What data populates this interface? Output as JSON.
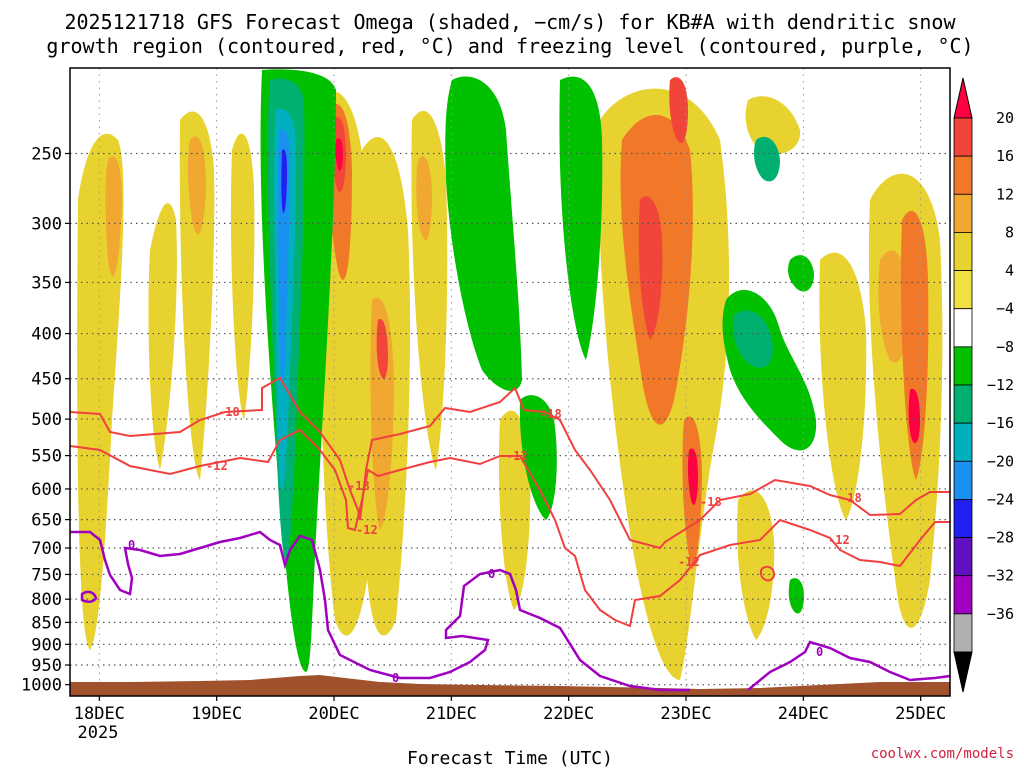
{
  "chart_data": {
    "type": "heatmap",
    "title_line1": "2025121718 GFS Forecast Omega (shaded, −cm/s) for KB#A with dendritic snow",
    "title_line2": "growth region (contoured, red, °C) and freezing level (contoured, purple, °C)",
    "xlabel": "Forecast Time (UTC)",
    "x_ticks": [
      "18DEC",
      "19DEC",
      "20DEC",
      "21DEC",
      "22DEC",
      "23DEC",
      "24DEC",
      "25DEC"
    ],
    "x_year": "2025",
    "y_ticks": [
      "250",
      "300",
      "350",
      "400",
      "450",
      "500",
      "550",
      "600",
      "650",
      "700",
      "750",
      "800",
      "850",
      "900",
      "950",
      "1000"
    ],
    "y_values": [
      250,
      300,
      350,
      400,
      450,
      500,
      550,
      600,
      650,
      700,
      750,
      800,
      850,
      900,
      950,
      1000
    ],
    "y_range_hpa": [
      1030,
      200
    ],
    "x_range_days": [
      17.75,
      25.25
    ],
    "colorbar_labels": [
      "20",
      "16",
      "12",
      "8",
      "4",
      "−4",
      "−8",
      "−12",
      "−16",
      "−20",
      "−24",
      "−28",
      "−32",
      "−36"
    ],
    "colorbar_colors": [
      "#ff0040",
      "#f2453a",
      "#f07828",
      "#f0a830",
      "#e8d230",
      "#f0e040",
      "#ffffff",
      "#00c000",
      "#00b070",
      "#00b0c0",
      "#1a90f0",
      "#2020f0",
      "#6010c0",
      "#a000c0",
      "#b0b0b0",
      "#000000"
    ],
    "contours": [
      {
        "label": "-18",
        "color": "#f04040"
      },
      {
        "label": "-12",
        "color": "#f04040"
      },
      {
        "label": "0",
        "color": "#a000c0"
      }
    ],
    "watermark": "coolwx.com/models"
  }
}
